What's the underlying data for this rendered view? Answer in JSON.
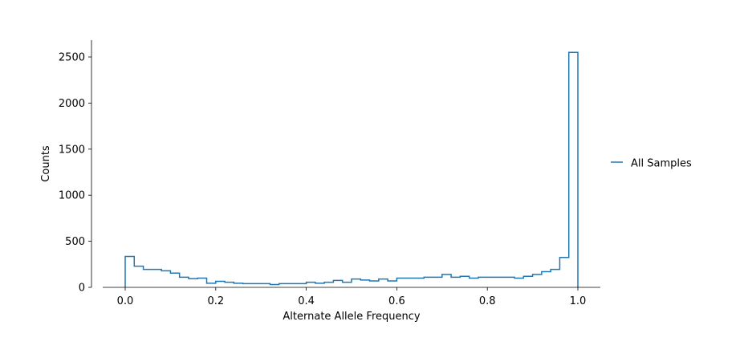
{
  "chart_data": {
    "type": "histogram",
    "histtype": "step",
    "xlabel": "Alternate Allele Frequency",
    "ylabel": "Counts",
    "xlim": [
      -0.05,
      1.05
    ],
    "ylim": [
      0,
      2680
    ],
    "x_ticks": [
      0.0,
      0.2,
      0.4,
      0.6,
      0.8,
      1.0
    ],
    "x_tick_labels": [
      "0.0",
      "0.2",
      "0.4",
      "0.6",
      "0.8",
      "1.0"
    ],
    "y_ticks": [
      0,
      500,
      1000,
      1500,
      2000,
      2500
    ],
    "y_tick_labels": [
      "0",
      "500",
      "1000",
      "1500",
      "2000",
      "2500"
    ],
    "grid": false,
    "legend_position": "right",
    "series": [
      {
        "name": "All Samples",
        "color": "#1f77b4",
        "bin_edges": [
          0.0,
          0.02,
          0.04,
          0.06,
          0.08,
          0.1,
          0.12,
          0.14,
          0.16,
          0.18,
          0.2,
          0.22,
          0.24,
          0.26,
          0.28,
          0.3,
          0.32,
          0.34,
          0.36,
          0.38,
          0.4,
          0.42,
          0.44,
          0.46,
          0.48,
          0.5,
          0.52,
          0.54,
          0.56,
          0.58,
          0.6,
          0.62,
          0.64,
          0.66,
          0.68,
          0.7,
          0.72,
          0.74,
          0.76,
          0.78,
          0.8,
          0.82,
          0.84,
          0.86,
          0.88,
          0.9,
          0.92,
          0.94,
          0.96,
          0.98,
          1.0
        ],
        "counts": [
          335,
          230,
          195,
          195,
          180,
          155,
          110,
          95,
          100,
          45,
          65,
          55,
          45,
          40,
          40,
          40,
          30,
          40,
          40,
          40,
          55,
          45,
          55,
          75,
          55,
          90,
          80,
          70,
          90,
          70,
          100,
          100,
          100,
          110,
          110,
          140,
          110,
          120,
          100,
          110,
          110,
          110,
          110,
          100,
          120,
          140,
          170,
          195,
          325,
          2550
        ]
      }
    ]
  }
}
